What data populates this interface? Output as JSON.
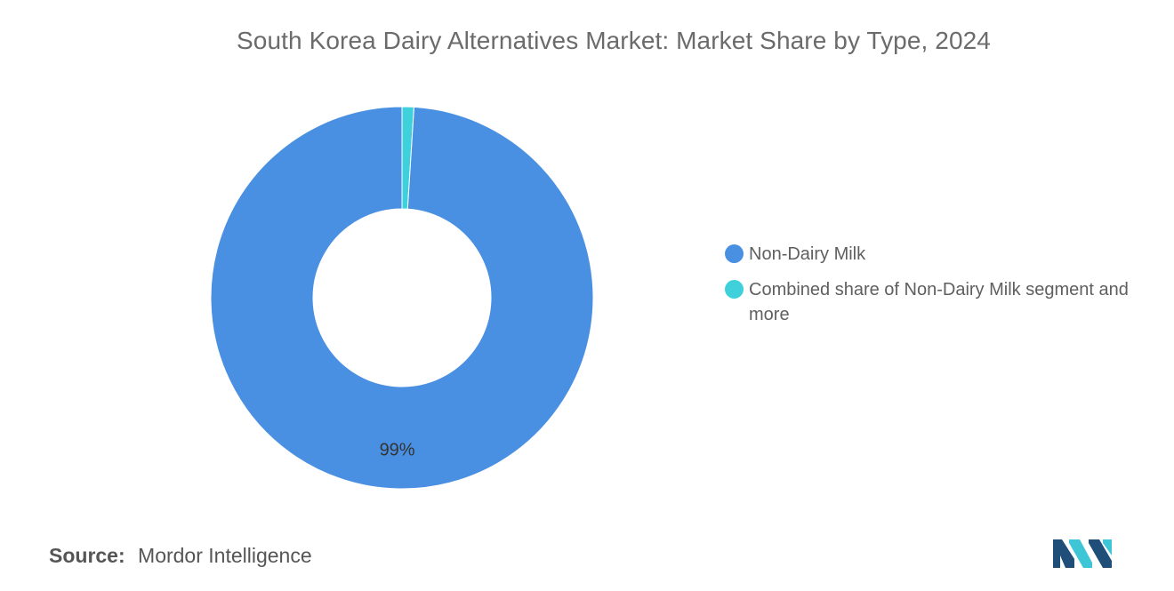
{
  "chart_data": {
    "type": "pie",
    "donut": true,
    "title": "South Korea Dairy Alternatives Market: Market Share by Type, 2024",
    "slices": [
      {
        "name": "Non-Dairy Milk",
        "value": 99,
        "label": "99%",
        "color": "#4a90e2"
      },
      {
        "name": "Combined share of Non-Dairy Milk segment and more",
        "value": 1,
        "label": "",
        "color": "#3ed1dc"
      }
    ],
    "legend_position": "right"
  },
  "source": {
    "label": "Source:",
    "text": "Mordor Intelligence"
  },
  "logo": {
    "icon": "mordor-intelligence-logo-icon",
    "colors": [
      "#1f4e79",
      "#3ec6d6"
    ]
  }
}
